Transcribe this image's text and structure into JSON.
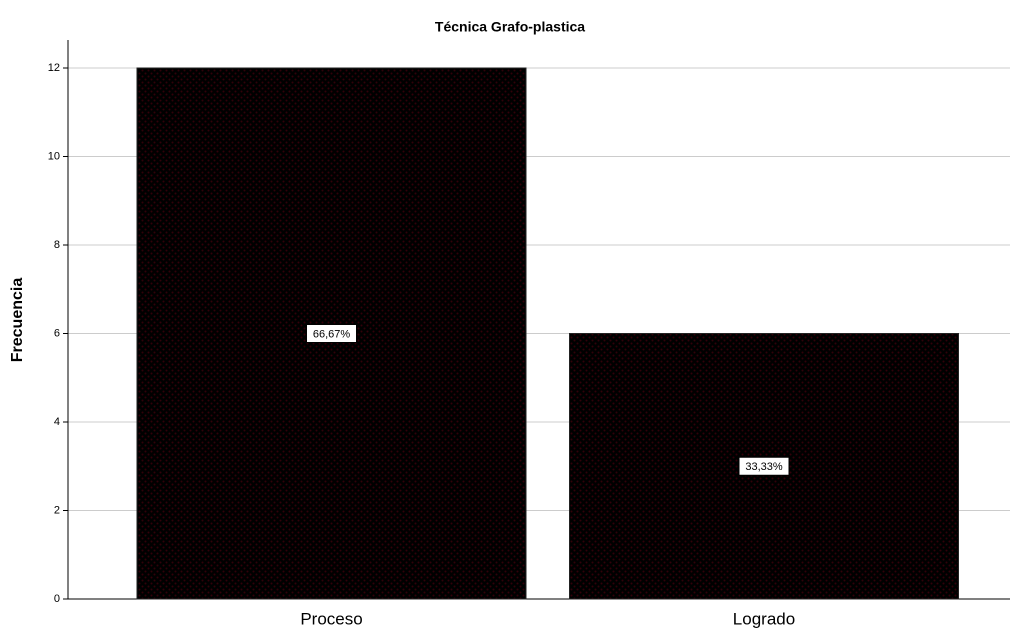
{
  "chart_data": {
    "type": "bar",
    "title": "Técnica Grafo-plastica",
    "y_label": "Frecuencia",
    "categories": [
      "Proceso",
      "Logrado"
    ],
    "values": [
      12,
      6
    ],
    "color": "#c8102e",
    "percentages": {
      "values": [
        66.67,
        33.33
      ],
      "value_labels": [
        "66,67%",
        "33,33%"
      ]
    },
    "ylim": [
      0,
      12
    ],
    "yticks": [
      0,
      2,
      4,
      6,
      8,
      10,
      12
    ],
    "grid": true
  }
}
